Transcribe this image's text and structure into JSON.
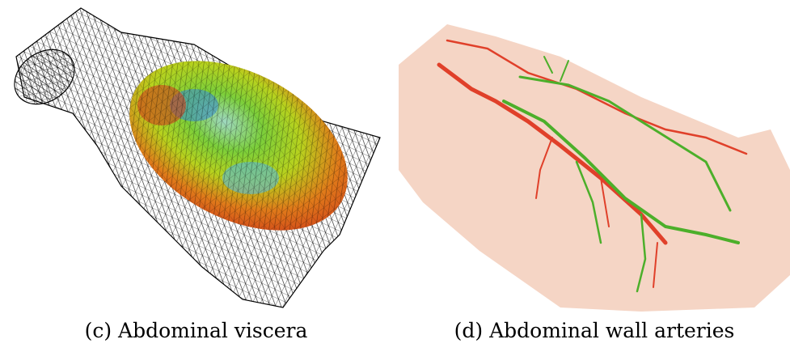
{
  "figure": {
    "subfigures": [
      {
        "label": "(c)",
        "caption": "(c) Abdominal viscera",
        "content": "wireframe mesh with colored surface"
      },
      {
        "label": "(d)",
        "caption": "(d) Abdominal wall arteries",
        "content": "skin surface with red and green arteries"
      }
    ],
    "colors": {
      "mesh": "#000000",
      "skin": "#f5d5c5",
      "artery_red": "#e0402a",
      "artery_green": "#4caf2a"
    }
  }
}
